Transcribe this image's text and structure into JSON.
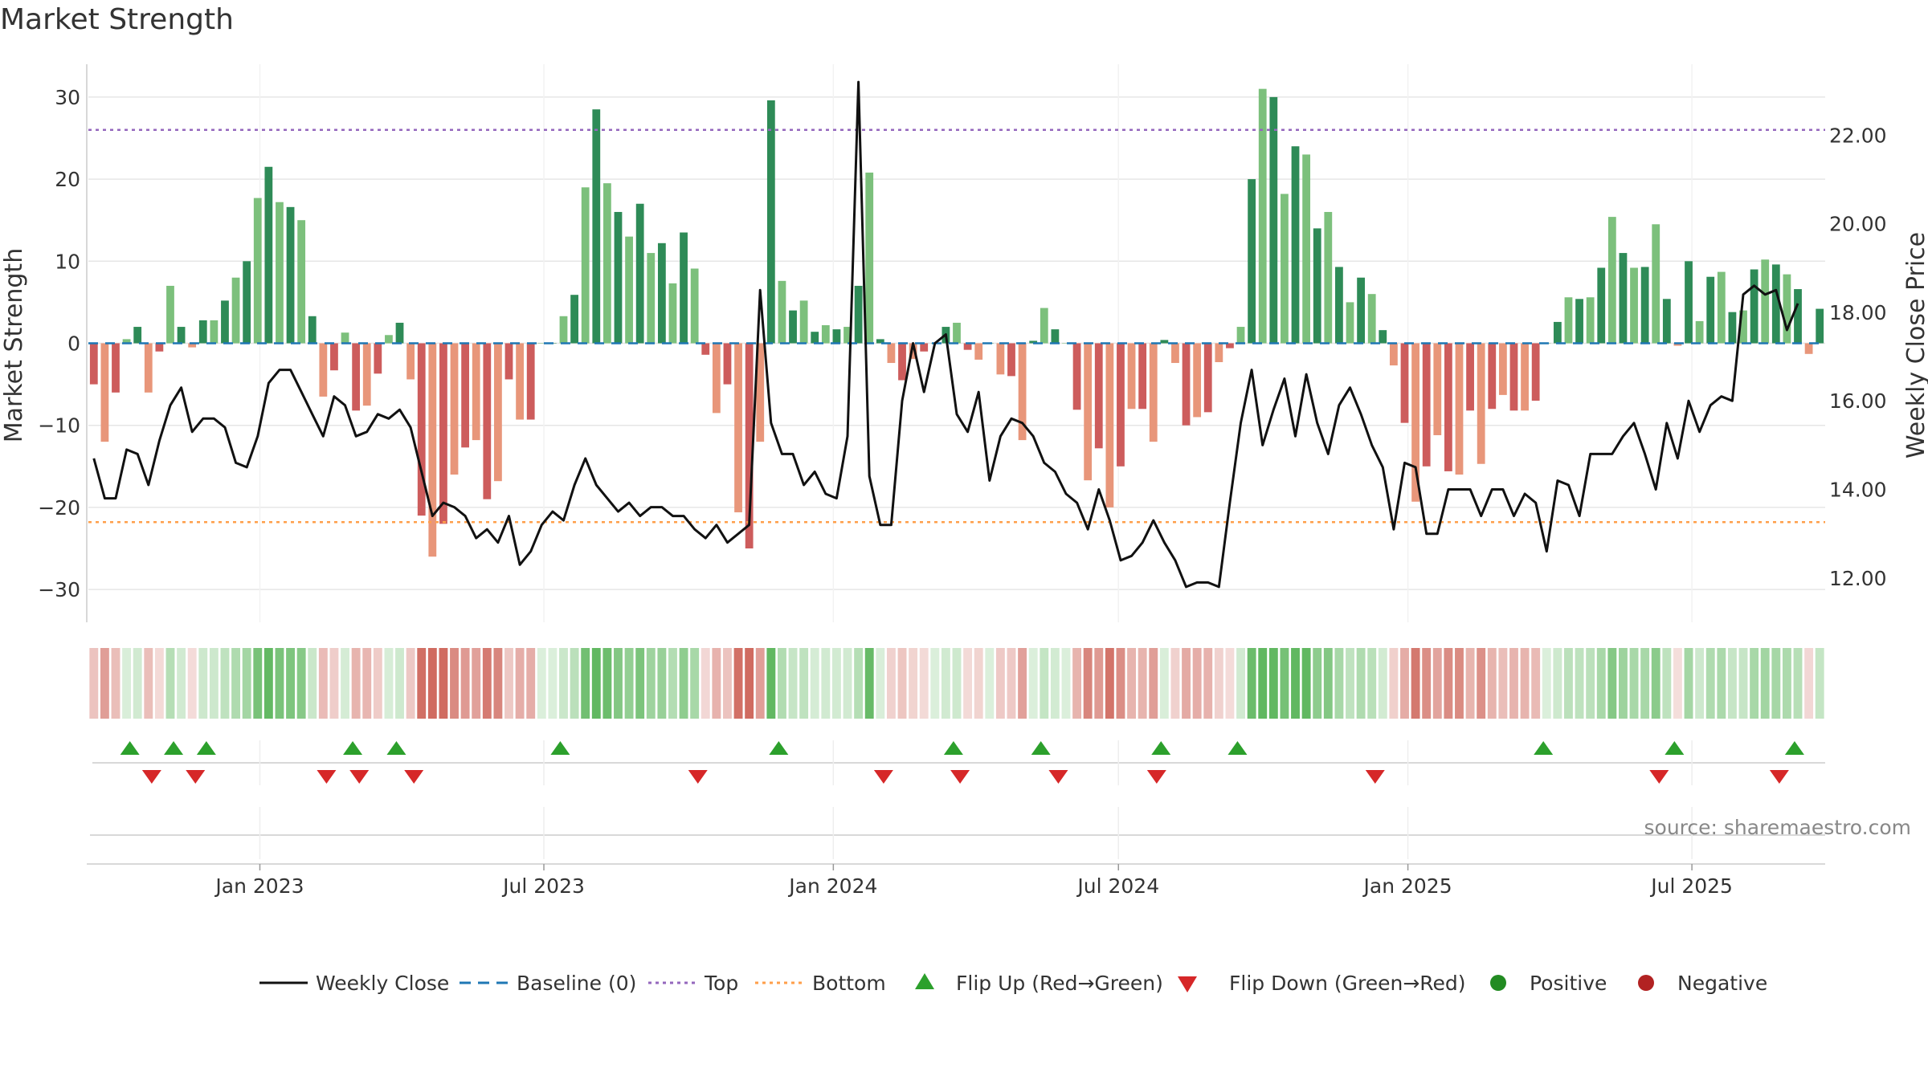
{
  "chart_data": {
    "type": "bar+line",
    "title": "Market Strength",
    "ylabel_left": "Market Strength",
    "ylabel_right": "Weekly Close Price",
    "left_ylim": [
      -34,
      34
    ],
    "right_ylim": [
      11.0,
      23.6
    ],
    "left_ticks": [
      30,
      20,
      10,
      0,
      -10,
      -20,
      -30
    ],
    "left_tick_labels": [
      "30",
      "20",
      "10",
      "0",
      "−10",
      "−20",
      "−30"
    ],
    "right_ticks": [
      22,
      20,
      18,
      16,
      14,
      12
    ],
    "right_tick_labels": [
      "22.00",
      "20.00",
      "18.00",
      "16.00",
      "14.00",
      "12.00"
    ],
    "top_level": 26,
    "bottom_level": -21.8,
    "x_ticks": [
      "Jan 2023",
      "Jul 2023",
      "Jan 2024",
      "Jul 2024",
      "Jan 2025",
      "Jul 2025"
    ],
    "x_tick_index": [
      15.2,
      41.2,
      67.7,
      93.8,
      120.3,
      146.3
    ],
    "strength": [
      -5,
      -12,
      -6,
      0.5,
      2,
      -6,
      -1,
      7,
      2,
      -0.5,
      2.8,
      2.8,
      5.2,
      8,
      10,
      17.7,
      21.5,
      17.2,
      16.6,
      15,
      3.3,
      -6.5,
      -3.3,
      1.3,
      -8.2,
      -7.6,
      -3.7,
      1,
      2.5,
      -4.4,
      -21,
      -26,
      -22,
      -16,
      -12.7,
      -11.8,
      -19,
      -16.8,
      -4.4,
      -9.3,
      -9.3,
      0,
      0,
      3.3,
      5.9,
      19,
      28.5,
      19.5,
      16,
      13,
      17,
      11,
      12.2,
      7.3,
      13.5,
      9.1,
      -1.4,
      -8.5,
      -5,
      -20.6,
      -25,
      -12,
      29.6,
      7.6,
      4,
      5.2,
      1.4,
      2.2,
      1.7,
      2,
      7,
      20.8,
      0.5,
      -2.4,
      -4.5,
      -1.9,
      -1,
      0,
      2,
      2.5,
      -0.8,
      -2,
      0,
      -3.8,
      -4,
      -11.8,
      0.3,
      4.3,
      1.7,
      0,
      -8.1,
      -16.7,
      -12.8,
      -20,
      -15,
      -8,
      -8,
      -12,
      0.4,
      -2.4,
      -10,
      -9,
      -8.4,
      -2.3,
      -0.6,
      2,
      20,
      31,
      30,
      18.2,
      24,
      23,
      14,
      16,
      9.3,
      5,
      8,
      6,
      1.6,
      -2.7,
      -9.7,
      -19.3,
      -15,
      -11.2,
      -15.6,
      -16,
      -8.2,
      -14.7,
      -8,
      -6.3,
      -8.2,
      -8.2,
      -7,
      0,
      2.6,
      5.6,
      5.4,
      5.6,
      9.2,
      15.4,
      11,
      9.2,
      9.3,
      14.5,
      5.4,
      -0.3,
      10,
      2.7,
      8.1,
      8.7,
      3.8,
      4,
      9,
      10.2,
      9.6,
      8.4,
      6.6,
      -1.3,
      4.2
    ],
    "close": [
      14.7,
      13.8,
      13.8,
      14.9,
      14.8,
      14.1,
      15.1,
      15.9,
      16.3,
      15.3,
      15.6,
      15.6,
      15.4,
      14.6,
      14.5,
      15.2,
      16.4,
      16.7,
      16.7,
      16.2,
      15.7,
      15.2,
      16.1,
      15.9,
      15.2,
      15.3,
      15.7,
      15.6,
      15.8,
      15.4,
      14.4,
      13.4,
      13.7,
      13.6,
      13.4,
      12.9,
      13.1,
      12.8,
      13.4,
      12.3,
      12.6,
      13.2,
      13.5,
      13.3,
      14.1,
      14.7,
      14.1,
      13.8,
      13.5,
      13.7,
      13.4,
      13.6,
      13.6,
      13.4,
      13.4,
      13.1,
      12.9,
      13.2,
      12.8,
      13.0,
      13.2,
      18.5,
      15.5,
      14.8,
      14.8,
      14.1,
      14.4,
      13.9,
      13.8,
      15.2,
      23.2,
      14.3,
      13.2,
      13.2,
      16.0,
      17.3,
      16.2,
      17.3,
      17.5,
      15.7,
      15.3,
      16.2,
      14.2,
      15.2,
      15.6,
      15.5,
      15.2,
      14.6,
      14.4,
      13.9,
      13.7,
      13.1,
      14.0,
      13.3,
      12.4,
      12.5,
      12.8,
      13.3,
      12.8,
      12.4,
      11.8,
      11.9,
      11.9,
      11.8,
      13.7,
      15.5,
      16.7,
      15.0,
      15.8,
      16.5,
      15.2,
      16.6,
      15.5,
      14.8,
      15.9,
      16.3,
      15.7,
      15.0,
      14.5,
      13.1,
      14.6,
      14.5,
      13.0,
      13.0,
      14.0,
      14.0,
      14.0,
      13.4,
      14.0,
      14.0,
      13.4,
      13.9,
      13.7,
      12.6,
      14.2,
      14.1,
      13.4,
      14.8,
      14.8,
      14.8,
      15.2,
      15.5,
      14.8,
      14.0,
      15.5,
      14.7,
      16.0,
      15.3,
      15.9,
      16.1,
      16.0,
      18.4,
      18.6,
      18.4,
      18.5,
      17.6,
      18.2
    ],
    "flip_up_index": [
      3.3,
      7.3,
      10.3,
      23.7,
      27.7,
      42.7,
      62.7,
      78.7,
      86.7,
      97.7,
      104.7,
      132.7,
      144.7,
      155.7
    ],
    "flip_down_index": [
      5.3,
      9.3,
      21.3,
      24.3,
      29.3,
      55.3,
      72.3,
      79.3,
      88.3,
      97.3,
      117.3,
      143.3,
      154.3
    ],
    "legend": [
      "Weekly Close",
      "Baseline (0)",
      "Top",
      "Bottom",
      "Flip Up (Red→Green)",
      "Flip Down (Green→Red)",
      "Positive",
      "Negative"
    ],
    "source_text": "source: sharemaestro.com",
    "colors": {
      "pos_strong": "#2e8b57",
      "pos_light": "#7cc07c",
      "neg_strong": "#cd5c5c",
      "neg_light": "#e8967a",
      "line": "#111111",
      "baseline": "#1f77b4",
      "top": "#9467bd",
      "bottom": "#ff9f4a",
      "flip_up": "#2ca02c",
      "flip_down": "#d62728",
      "positive": "#228b22",
      "negative": "#b22222",
      "grid": "#e6e6e6",
      "axis": "#cccccc"
    }
  }
}
